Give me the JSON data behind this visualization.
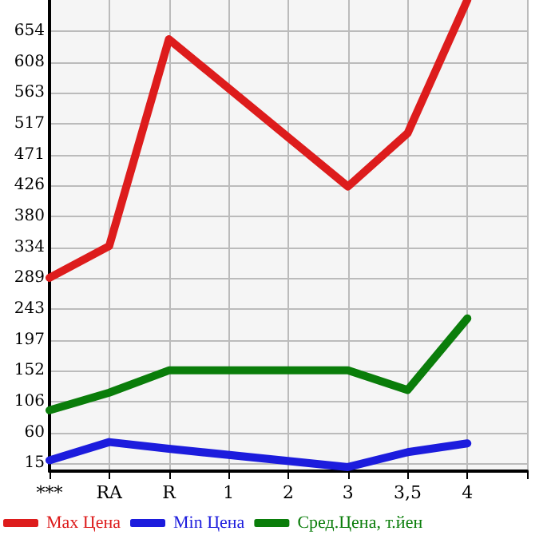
{
  "chart_data": {
    "type": "line",
    "categories": [
      "***",
      "RA",
      "R",
      "1",
      "2",
      "3",
      "3,5",
      "4",
      null
    ],
    "series": [
      {
        "name": "Max Цена",
        "color": "#dd1c1c",
        "values": [
          289,
          336,
          642,
          null,
          null,
          424,
          503,
          700,
          null
        ]
      },
      {
        "name": "Min Цена",
        "color": "#1c1cdd",
        "values": [
          19,
          46,
          36,
          null,
          null,
          9,
          31,
          44,
          null
        ]
      },
      {
        "name": "Сред.Цена, т.йен",
        "color": "#0a7d0a",
        "values": [
          93,
          119,
          152,
          null,
          null,
          152,
          123,
          229,
          null
        ]
      }
    ],
    "ylim": [
      3,
      700
    ],
    "yticks": [
      15,
      60,
      106,
      152,
      197,
      243,
      289,
      334,
      380,
      426,
      471,
      517,
      563,
      608,
      654
    ],
    "grid": true,
    "legend": "bottom",
    "marker": "none",
    "line_style": "solid"
  }
}
